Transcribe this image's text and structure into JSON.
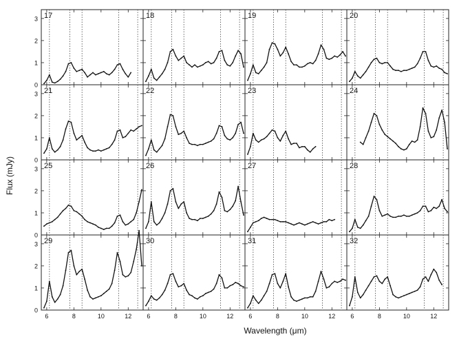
{
  "figure": {
    "ylabel": "Flux (mJy)",
    "xlabel": "Wavelength (μm)"
  },
  "chart_data": {
    "type": "line",
    "grid": "4x4 panels with shared axes",
    "xlabel": "Wavelength (μm)",
    "ylabel": "Flux (mJy)",
    "xlim": [
      5.6,
      13.1
    ],
    "ylim": [
      0,
      3.4
    ],
    "x_ticks": [
      6,
      8,
      10,
      12
    ],
    "y_ticks": [
      0,
      1,
      2,
      3
    ],
    "reference_lines_um": [
      6.2,
      7.7,
      8.6,
      11.3,
      12.7
    ],
    "x": [
      5.8,
      6.0,
      6.2,
      6.4,
      6.6,
      6.8,
      7.0,
      7.2,
      7.4,
      7.6,
      7.8,
      8.0,
      8.2,
      8.4,
      8.6,
      8.8,
      9.0,
      9.2,
      9.4,
      9.6,
      9.8,
      10.0,
      10.2,
      10.4,
      10.6,
      10.8,
      11.0,
      11.2,
      11.4,
      11.6,
      11.8,
      12.0,
      12.2,
      12.4,
      12.6,
      12.8,
      13.0
    ],
    "panels": [
      {
        "label": "17",
        "values": [
          0.05,
          0.2,
          0.45,
          0.12,
          0.08,
          0.15,
          0.25,
          0.4,
          0.6,
          0.95,
          1.0,
          0.75,
          0.6,
          0.65,
          0.7,
          0.55,
          0.35,
          0.45,
          0.55,
          0.45,
          0.5,
          0.55,
          0.6,
          0.5,
          0.45,
          0.55,
          0.7,
          0.9,
          0.95,
          0.7,
          0.5,
          0.35,
          0.55,
          null,
          null,
          null,
          null
        ]
      },
      {
        "label": "18",
        "values": [
          0.15,
          0.4,
          0.7,
          0.3,
          0.2,
          0.35,
          0.5,
          0.7,
          1.0,
          1.5,
          1.6,
          1.3,
          1.1,
          1.2,
          1.3,
          1.0,
          0.9,
          0.8,
          0.9,
          0.8,
          0.85,
          0.9,
          1.0,
          1.05,
          0.95,
          1.0,
          1.2,
          1.5,
          1.55,
          1.1,
          0.9,
          0.85,
          1.0,
          1.3,
          1.55,
          1.4,
          0.8
        ]
      },
      {
        "label": "19",
        "values": [
          0.2,
          0.5,
          0.9,
          0.55,
          0.5,
          0.65,
          0.8,
          1.0,
          1.6,
          1.9,
          1.85,
          1.6,
          1.3,
          1.45,
          1.7,
          1.4,
          1.05,
          0.9,
          0.9,
          0.8,
          0.8,
          0.85,
          0.95,
          1.0,
          0.95,
          1.1,
          1.4,
          1.8,
          1.6,
          1.2,
          1.15,
          1.2,
          1.3,
          1.25,
          1.35,
          1.5,
          1.3
        ]
      },
      {
        "label": "20",
        "values": [
          0.15,
          0.3,
          0.6,
          0.4,
          0.3,
          0.45,
          0.6,
          0.8,
          1.0,
          1.15,
          1.2,
          1.0,
          0.95,
          1.0,
          1.0,
          0.85,
          0.7,
          0.65,
          0.65,
          0.6,
          0.65,
          0.65,
          0.7,
          0.75,
          0.8,
          0.95,
          1.2,
          1.5,
          1.5,
          1.1,
          0.85,
          0.8,
          0.85,
          0.75,
          0.7,
          0.55,
          0.5
        ]
      },
      {
        "label": "21",
        "values": [
          0.3,
          0.5,
          1.0,
          0.5,
          0.35,
          0.45,
          0.6,
          0.9,
          1.4,
          1.75,
          1.7,
          1.2,
          0.9,
          1.0,
          1.1,
          0.8,
          0.55,
          0.45,
          0.4,
          0.4,
          0.45,
          0.4,
          0.45,
          0.5,
          0.55,
          0.7,
          0.9,
          1.3,
          1.35,
          1.0,
          1.05,
          1.2,
          1.35,
          1.3,
          1.4,
          1.5,
          1.55
        ]
      },
      {
        "label": "22",
        "values": [
          0.2,
          0.5,
          0.9,
          0.45,
          0.35,
          0.5,
          0.65,
          0.95,
          1.5,
          2.05,
          2.0,
          1.5,
          1.15,
          1.2,
          1.3,
          1.0,
          0.75,
          0.7,
          0.7,
          0.65,
          0.7,
          0.7,
          0.75,
          0.8,
          0.85,
          0.95,
          1.2,
          1.55,
          1.5,
          1.1,
          0.95,
          0.9,
          1.0,
          1.2,
          1.6,
          1.7,
          1.2
        ]
      },
      {
        "label": "23",
        "values": [
          0.25,
          0.6,
          1.2,
          0.9,
          0.8,
          0.9,
          0.95,
          1.05,
          1.2,
          1.35,
          1.3,
          1.0,
          0.85,
          1.1,
          1.3,
          0.95,
          0.7,
          0.75,
          0.75,
          0.55,
          0.6,
          0.6,
          0.45,
          0.35,
          0.5,
          0.6,
          null,
          null,
          null,
          null,
          null,
          null,
          null,
          null,
          null,
          null,
          null
        ]
      },
      {
        "label": "24",
        "values": [
          null,
          null,
          null,
          null,
          0.8,
          0.7,
          1.0,
          1.3,
          1.7,
          2.1,
          2.0,
          1.6,
          1.35,
          1.15,
          1.05,
          0.95,
          0.85,
          0.75,
          0.6,
          0.5,
          0.45,
          0.5,
          0.7,
          0.85,
          0.8,
          0.9,
          1.5,
          2.35,
          2.1,
          1.3,
          1.0,
          1.05,
          1.35,
          1.9,
          2.25,
          1.7,
          0.5
        ]
      },
      {
        "label": "25",
        "values": [
          0.4,
          0.5,
          0.55,
          0.6,
          0.7,
          0.8,
          0.95,
          1.1,
          1.2,
          1.35,
          1.3,
          1.1,
          1.05,
          0.95,
          0.85,
          0.7,
          0.6,
          0.55,
          0.5,
          0.45,
          0.35,
          0.3,
          0.25,
          0.3,
          0.3,
          0.4,
          0.55,
          0.85,
          0.9,
          0.6,
          0.45,
          0.5,
          0.6,
          0.7,
          1.0,
          1.5,
          2.05
        ]
      },
      {
        "label": "26",
        "values": [
          0.3,
          0.6,
          1.5,
          0.6,
          0.45,
          0.55,
          0.75,
          1.0,
          1.4,
          2.0,
          2.1,
          1.5,
          1.2,
          1.4,
          1.5,
          1.0,
          0.75,
          0.7,
          0.7,
          0.65,
          0.75,
          0.75,
          0.8,
          0.85,
          0.95,
          1.1,
          1.4,
          1.95,
          1.7,
          1.1,
          1.05,
          1.15,
          1.3,
          1.55,
          2.2,
          1.5,
          0.9
        ]
      },
      {
        "label": "27",
        "values": [
          0.15,
          0.35,
          0.55,
          0.6,
          0.65,
          0.75,
          0.8,
          0.75,
          0.7,
          0.7,
          0.7,
          0.65,
          0.6,
          0.6,
          0.6,
          0.55,
          0.5,
          0.45,
          0.5,
          0.55,
          0.5,
          0.45,
          0.5,
          0.55,
          0.6,
          0.55,
          0.5,
          0.55,
          0.6,
          0.6,
          0.7,
          0.65,
          0.7,
          null,
          null,
          null,
          null
        ]
      },
      {
        "label": "28",
        "values": [
          0.15,
          0.3,
          0.7,
          0.35,
          0.3,
          0.45,
          0.65,
          0.85,
          1.3,
          1.75,
          1.6,
          1.1,
          0.85,
          0.9,
          0.95,
          0.85,
          0.8,
          0.8,
          0.85,
          0.85,
          0.9,
          0.85,
          0.85,
          0.9,
          0.95,
          1.0,
          1.1,
          1.3,
          1.3,
          1.05,
          1.1,
          1.25,
          1.2,
          1.3,
          1.6,
          1.2,
          1.05
        ]
      },
      {
        "label": "29",
        "values": [
          0.1,
          0.4,
          1.3,
          0.6,
          0.35,
          0.5,
          0.7,
          1.1,
          1.8,
          2.6,
          2.7,
          2.0,
          1.6,
          1.75,
          1.85,
          1.4,
          0.9,
          0.6,
          0.5,
          0.55,
          0.6,
          0.65,
          0.75,
          0.85,
          0.95,
          1.2,
          1.8,
          2.6,
          2.2,
          1.6,
          1.5,
          1.55,
          1.7,
          2.2,
          2.75,
          3.6,
          2.0
        ]
      },
      {
        "label": "30",
        "values": [
          0.2,
          0.4,
          0.65,
          0.5,
          0.45,
          0.55,
          0.7,
          0.9,
          1.2,
          1.6,
          1.65,
          1.3,
          1.05,
          1.1,
          1.2,
          0.9,
          0.7,
          0.65,
          0.55,
          0.5,
          0.6,
          0.65,
          0.75,
          0.8,
          0.85,
          0.95,
          1.2,
          1.6,
          1.45,
          1.0,
          1.0,
          1.1,
          1.15,
          1.25,
          1.2,
          1.1,
          1.05
        ]
      },
      {
        "label": "31",
        "values": [
          0.1,
          0.3,
          0.65,
          0.45,
          0.3,
          0.45,
          0.65,
          0.85,
          1.2,
          1.6,
          1.65,
          1.2,
          1.0,
          1.3,
          1.65,
          1.05,
          0.6,
          0.45,
          0.4,
          0.45,
          0.5,
          0.55,
          0.55,
          0.6,
          0.6,
          0.85,
          1.3,
          1.75,
          1.4,
          1.0,
          1.05,
          1.2,
          1.3,
          1.25,
          1.3,
          1.4,
          1.35
        ]
      },
      {
        "label": "32",
        "values": [
          0.2,
          0.6,
          1.5,
          0.8,
          0.55,
          0.7,
          0.9,
          1.1,
          1.3,
          1.5,
          1.55,
          1.3,
          1.2,
          1.4,
          1.5,
          1.1,
          0.7,
          0.6,
          0.55,
          0.6,
          0.65,
          0.7,
          0.75,
          0.8,
          0.85,
          0.9,
          1.05,
          1.4,
          1.5,
          1.3,
          1.6,
          1.85,
          1.7,
          1.35,
          1.15,
          null,
          null
        ]
      }
    ]
  }
}
